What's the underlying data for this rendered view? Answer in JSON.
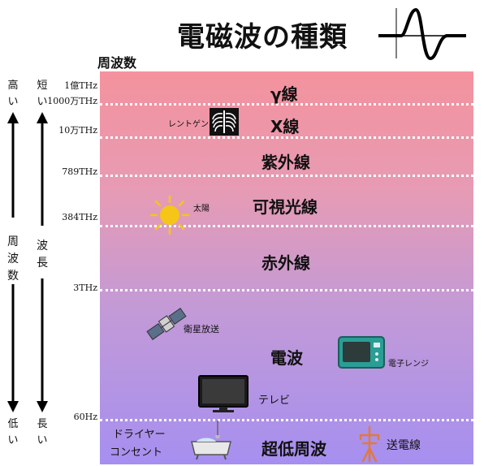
{
  "title": "電磁波の種類",
  "frequency_heading": "周波数",
  "axis_left": {
    "freq": {
      "high": "高い",
      "label": "周波数",
      "low": "低い"
    },
    "wavelength": {
      "short": "短い",
      "label": "波長",
      "long": "長い"
    }
  },
  "frequency_ticks": [
    "1億THz",
    "1000万THz",
    "10万THz",
    "789THz",
    "384THz",
    "3THz",
    "60Hz"
  ],
  "bands": [
    "γ線",
    "X線",
    "紫外線",
    "可視光線",
    "赤外線",
    "電波",
    "超低周波"
  ],
  "examples": {
    "xray": "レントゲン",
    "sun": "太陽",
    "satellite": "衛星放送",
    "microwave": "電子レンジ",
    "tv": "テレビ",
    "dryer": "ドライヤー",
    "outlet": "コンセント",
    "powerline": "送電線"
  },
  "colors": {
    "top": "#f4929d",
    "bottom": "#a68ff0",
    "divider": "#ffffff"
  }
}
